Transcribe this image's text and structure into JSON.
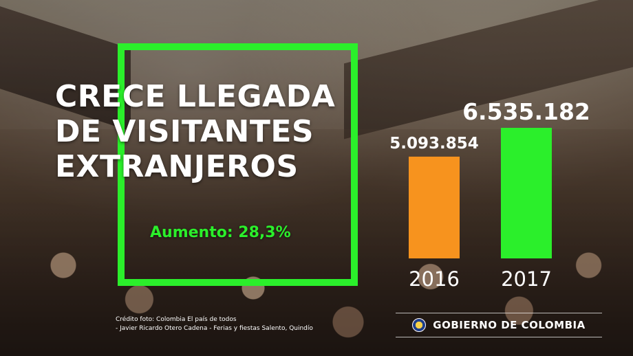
{
  "headline": {
    "line1": "CRECE LLEGADA",
    "line2": "DE VISITANTES",
    "line3": "EXTRANJEROS"
  },
  "increase_text": "Aumento: 28,3%",
  "credit": {
    "line1": "Crédito foto: Colombia El país de todos",
    "line2": "- Javier Ricardo Otero Cadena - Ferias y fiestas Salento, Quindío"
  },
  "gov_label": "GOBIERNO DE COLOMBIA",
  "colors": {
    "accent_green": "#2bef2b",
    "bar_2016": "#f7931e",
    "bar_2017": "#2bef2b"
  },
  "chart_data": {
    "type": "bar",
    "categories": [
      "2016",
      "2017"
    ],
    "values": [
      5093854,
      6535182
    ],
    "value_labels": [
      "5.093.854",
      "6.535.182"
    ],
    "colors": [
      "#f7931e",
      "#2bef2b"
    ],
    "title": "",
    "xlabel": "",
    "ylabel": "",
    "ylim": [
      0,
      6535182
    ],
    "grid": false,
    "legend": "none"
  }
}
